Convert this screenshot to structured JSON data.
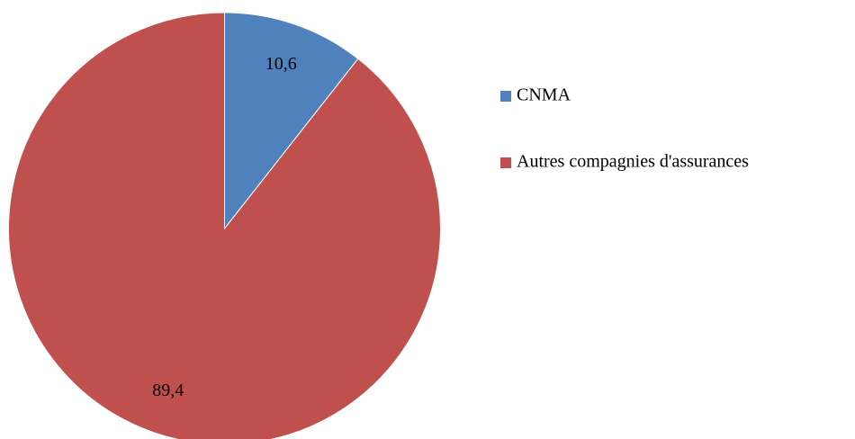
{
  "chart_data": {
    "type": "pie",
    "categories": [
      "CNMA",
      "Autres compagnies d'assurances"
    ],
    "values": [
      10.6,
      89.4
    ],
    "value_labels": [
      "10,6",
      "89,4"
    ],
    "colors": [
      "#4f81bd",
      "#c0504d"
    ],
    "legend": "right"
  }
}
